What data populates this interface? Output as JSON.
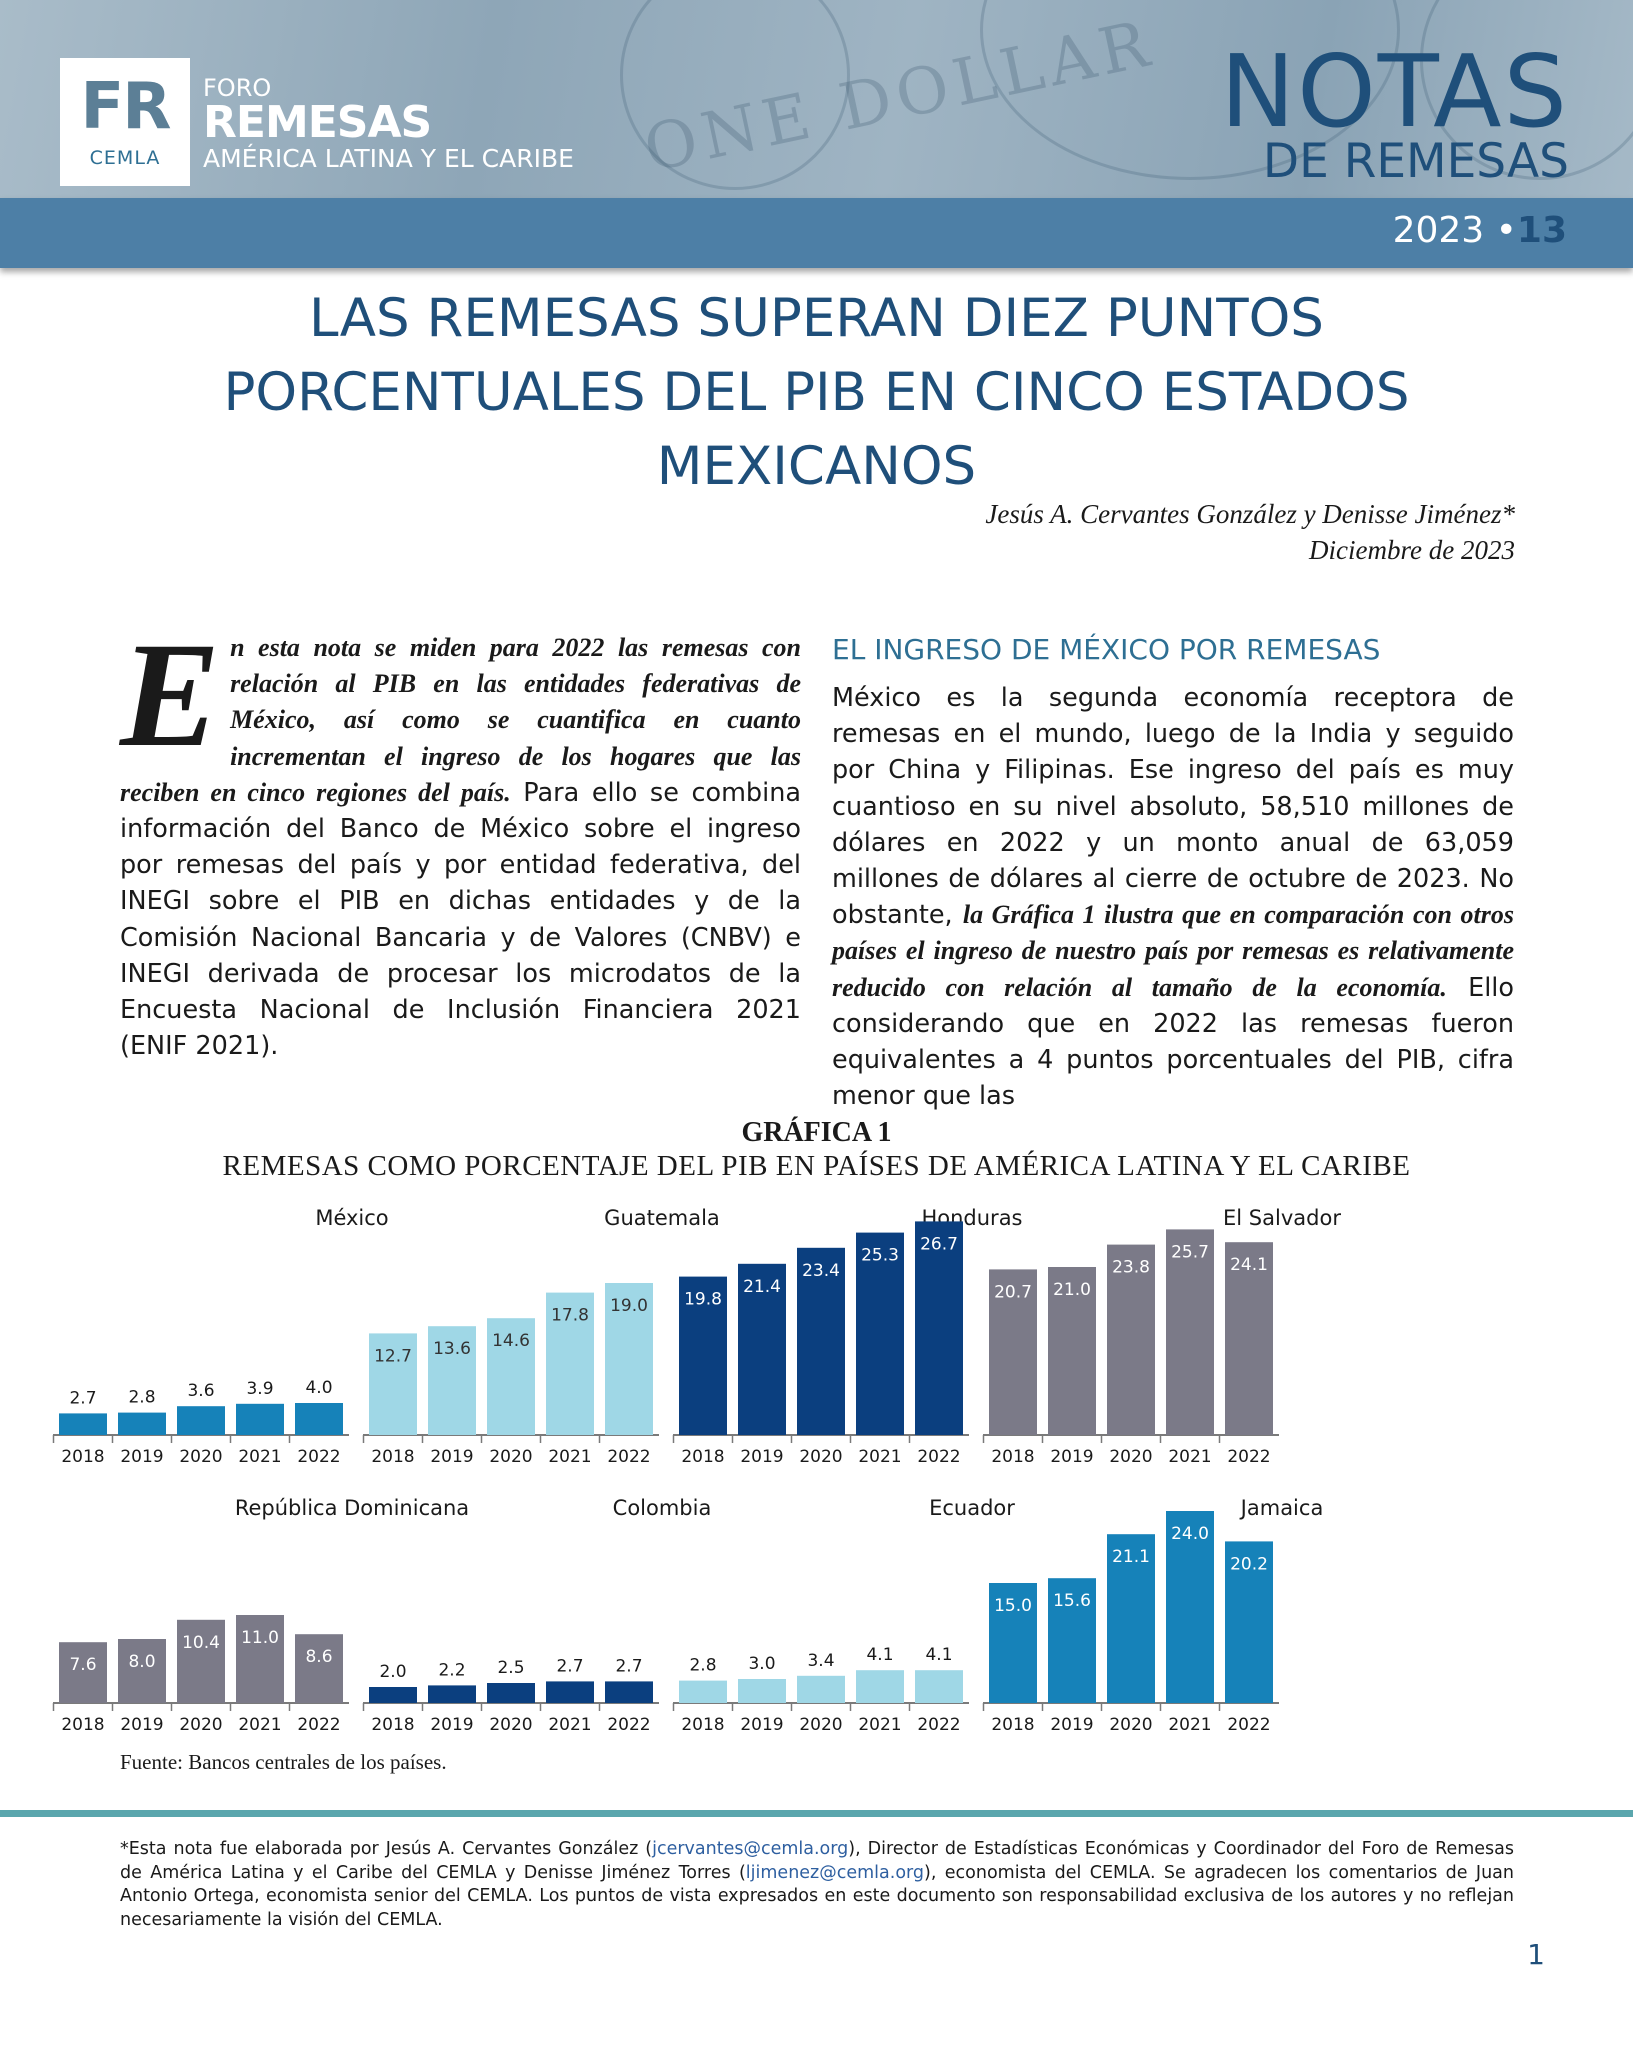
{
  "header": {
    "logo_fr": "FR",
    "logo_cemla": "CEMLA",
    "logo_foro": "FORO",
    "logo_remesas": "REMESAS",
    "logo_region": "AMÉRICA LATINA Y EL CARIBE",
    "series_big": "NOTAS",
    "series_small": "DE REMESAS",
    "issue_year": "2023",
    "issue_sep": "•",
    "issue_number": "13"
  },
  "title": {
    "line1": "LAS REMESAS SUPERAN DIEZ PUNTOS",
    "line2": "PORCENTUALES DEL PIB EN CINCO ESTADOS",
    "line3": "MEXICANOS",
    "authors": "Jesús A. Cervantes González y Denisse Jiménez*",
    "date": "Diciembre de 2023"
  },
  "left_column": {
    "drop_cap": "E",
    "lead": "n esta nota se miden para 2022 las remesas con relación al PIB en las entidades federativas de México, así como se cuantifica en cuanto incrementan el ingreso de los hogares que las reciben en cinco regiones del país.",
    "body": " Para ello se combina información del Banco de México sobre el ingreso por remesas del país y por entidad federativa, del INEGI sobre el PIB en dichas entidades y de la Comisión Nacional Bancaria y de Valores (CNBV) e INEGI derivada de procesar los microdatos de la Encuesta Nacional de Inclusión Financiera 2021 (ENIF 2021)."
  },
  "right_column": {
    "heading": "EL INGRESO DE MÉXICO POR REMESAS",
    "p1": "México es la segunda economía receptora de remesas en el mundo, luego de la India y seguido por China y Filipinas. Ese ingreso del país es muy cuantioso en su nivel absoluto, 58,510 millones de dólares en 2022 y un monto anual de 63,059 millones de dólares al cierre de octubre de 2023. No obstante, ",
    "italic": "la Gráfica 1 ilustra que en comparación con otros países el ingreso de nuestro país por remesas es relativamente reducido con relación al tamaño de la economía.",
    "p2": " Ello considerando que en 2022 las remesas fueron equivalentes a 4 puntos porcentuales del PIB, cifra menor que las"
  },
  "chart_title": "GRÁFICA 1",
  "chart_subtitle": "REMESAS COMO PORCENTAJE DEL PIB EN PAÍSES DE AMÉRICA LATINA Y EL CARIBE",
  "chart_data": [
    {
      "type": "bar",
      "title": "México",
      "categories": [
        "2018",
        "2019",
        "2020",
        "2021",
        "2022"
      ],
      "values": [
        2.7,
        2.8,
        3.6,
        3.9,
        4.0
      ],
      "color": "#1682b9",
      "label_color": "#1a1a1a",
      "label_inside": false
    },
    {
      "type": "bar",
      "title": "Guatemala",
      "categories": [
        "2018",
        "2019",
        "2020",
        "2021",
        "2022"
      ],
      "values": [
        12.7,
        13.6,
        14.6,
        17.8,
        19.0
      ],
      "color": "#9fd7e6",
      "label_color": "#333333",
      "label_inside": true
    },
    {
      "type": "bar",
      "title": "Honduras",
      "categories": [
        "2018",
        "2019",
        "2020",
        "2021",
        "2022"
      ],
      "values": [
        19.8,
        21.4,
        23.4,
        25.3,
        26.7
      ],
      "color": "#0b3f7f",
      "label_color": "#ffffff",
      "label_inside": true
    },
    {
      "type": "bar",
      "title": "El Salvador",
      "categories": [
        "2018",
        "2019",
        "2020",
        "2021",
        "2022"
      ],
      "values": [
        20.7,
        21.0,
        23.8,
        25.7,
        24.1
      ],
      "color": "#7b7a88",
      "label_color": "#ffffff",
      "label_inside": true
    },
    {
      "type": "bar",
      "title": "República Dominicana",
      "categories": [
        "2018",
        "2019",
        "2020",
        "2021",
        "2022"
      ],
      "values": [
        7.6,
        8.0,
        10.4,
        11.0,
        8.6
      ],
      "color": "#7b7a88",
      "label_color": "#ffffff",
      "label_inside": true
    },
    {
      "type": "bar",
      "title": "Colombia",
      "categories": [
        "2018",
        "2019",
        "2020",
        "2021",
        "2022"
      ],
      "values": [
        2.0,
        2.2,
        2.5,
        2.7,
        2.7
      ],
      "color": "#0b3f7f",
      "label_color": "#1a1a1a",
      "label_inside": false
    },
    {
      "type": "bar",
      "title": "Ecuador",
      "categories": [
        "2018",
        "2019",
        "2020",
        "2021",
        "2022"
      ],
      "values": [
        2.8,
        3.0,
        3.4,
        4.1,
        4.1
      ],
      "color": "#9fd7e6",
      "label_color": "#1a1a1a",
      "label_inside": false
    },
    {
      "type": "bar",
      "title": "Jamaica",
      "categories": [
        "2018",
        "2019",
        "2020",
        "2021",
        "2022"
      ],
      "values": [
        15.0,
        15.6,
        21.1,
        24.0,
        20.2
      ],
      "color": "#1682b9",
      "label_color": "#ffffff",
      "label_inside": true
    }
  ],
  "source": "Fuente: Bancos centrales de los países.",
  "footnote": {
    "part1": "*Esta nota fue elaborada por Jesús A. Cervantes González (",
    "email1": "jcervantes@cemla.org",
    "part2": "), Director de Estadísticas Económicas y Coordinador del Foro de Remesas de América Latina y el Caribe del CEMLA y Denisse Jiménez Torres (",
    "email2": "ljimenez@cemla.org",
    "part3": "), economista del CEMLA. Se agradecen los comentarios de Juan Antonio Ortega, economista senior del CEMLA. Los puntos de vista expresados en este documento son responsabilidad exclusiva de los autores y no reflejan necesariamente la visión del CEMLA."
  },
  "page_number": "1"
}
